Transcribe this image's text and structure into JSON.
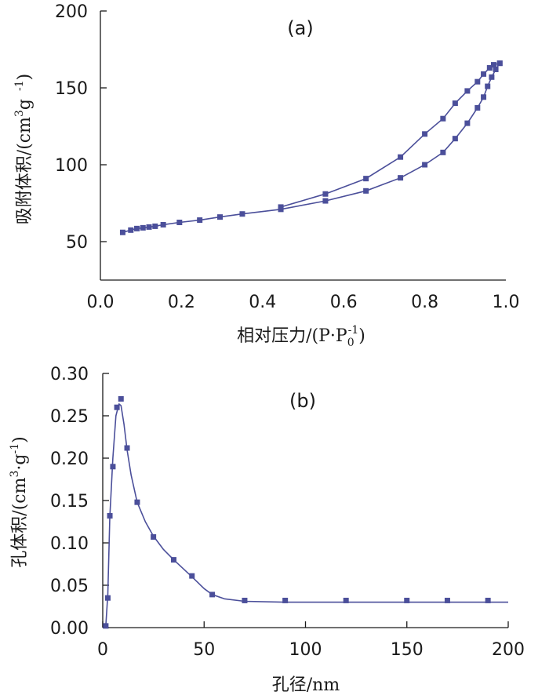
{
  "chart_data": [
    {
      "type": "line",
      "panel_label": "(a)",
      "xlabel": "相对压力/(P·P",
      "xlabel_sub": "0",
      "xlabel_sup": "-1",
      "xlabel_end": ")",
      "ylabel": "吸附体积/(cm",
      "ylabel_sup": "3",
      "ylabel_mid": "g",
      "ylabel_sup2": "-1",
      "ylabel_end": ")",
      "xlim": [
        0.0,
        1.0
      ],
      "ylim": [
        25,
        200
      ],
      "xticks": [
        0.0,
        0.2,
        0.4,
        0.6,
        0.8,
        1.0
      ],
      "xtick_labels": [
        "0.0",
        "0.2",
        "0.4",
        "0.6",
        "0.8",
        "1.0"
      ],
      "yticks": [
        50,
        100,
        150,
        200
      ],
      "ytick_labels": [
        "50",
        "100",
        "150",
        "200"
      ],
      "series": [
        {
          "x": [
            0.055,
            0.075,
            0.09,
            0.105,
            0.12,
            0.135,
            0.155,
            0.195,
            0.245,
            0.295,
            0.35,
            0.445,
            0.555,
            0.655,
            0.74,
            0.8,
            0.845,
            0.875,
            0.905,
            0.93,
            0.945,
            0.955,
            0.965,
            0.975,
            0.985
          ],
          "y": [
            56,
            57.5,
            58.5,
            59,
            59.5,
            60,
            61,
            62.5,
            64,
            66,
            68,
            71,
            76.5,
            83,
            91.5,
            100,
            108,
            117,
            127,
            137,
            144,
            151,
            157,
            162,
            166
          ]
        },
        {
          "x": [
            0.985,
            0.97,
            0.96,
            0.945,
            0.93,
            0.905,
            0.875,
            0.845,
            0.8,
            0.74,
            0.655,
            0.555,
            0.445
          ],
          "y": [
            166,
            165,
            163,
            159,
            154,
            148,
            140,
            130,
            120,
            105,
            91,
            81,
            72.5
          ]
        }
      ]
    },
    {
      "type": "line",
      "panel_label": "(b)",
      "xlabel": "孔径/nm",
      "ylabel": "孔体积/(cm",
      "ylabel_sup": "3",
      "ylabel_mid": "·g",
      "ylabel_sup2": "-1",
      "ylabel_end": ")",
      "xlim": [
        0,
        200
      ],
      "ylim": [
        0.0,
        0.3
      ],
      "xticks": [
        0,
        50,
        100,
        150,
        200
      ],
      "xtick_labels": [
        "0",
        "50",
        "100",
        "150",
        "200"
      ],
      "yticks": [
        0.0,
        0.05,
        0.1,
        0.15,
        0.2,
        0.25,
        0.3
      ],
      "ytick_labels": [
        "0.00",
        "0.05",
        "0.10",
        "0.15",
        "0.20",
        "0.25",
        "0.30"
      ],
      "markers": {
        "x": [
          1.5,
          2.5,
          3.5,
          5,
          7,
          9,
          12,
          17,
          25,
          35,
          44,
          54,
          70,
          90,
          120,
          150,
          170,
          190
        ],
        "y": [
          0.002,
          0.035,
          0.132,
          0.19,
          0.26,
          0.27,
          0.212,
          0.148,
          0.107,
          0.08,
          0.061,
          0.039,
          0.032,
          0.032,
          0.032,
          0.032,
          0.032,
          0.032
        ]
      },
      "curve": {
        "x": [
          1.5,
          2.5,
          3.5,
          5,
          6.5,
          8,
          9,
          10.5,
          12,
          14,
          17,
          21,
          25,
          30,
          35,
          44,
          50,
          54,
          60,
          70,
          90,
          120,
          150,
          170,
          190,
          200
        ],
        "y": [
          0.002,
          0.04,
          0.13,
          0.2,
          0.25,
          0.264,
          0.262,
          0.24,
          0.21,
          0.18,
          0.148,
          0.125,
          0.108,
          0.092,
          0.08,
          0.06,
          0.046,
          0.039,
          0.034,
          0.031,
          0.03,
          0.03,
          0.03,
          0.03,
          0.03,
          0.03
        ]
      }
    }
  ]
}
